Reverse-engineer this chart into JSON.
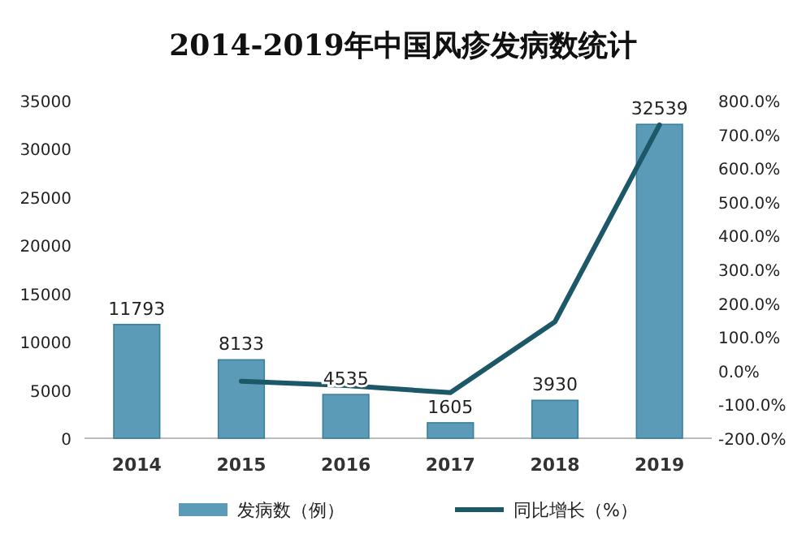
{
  "chart_data": {
    "type": "bar",
    "title": "2014-2019年中国风疹发病数统计",
    "categories": [
      "2014",
      "2015",
      "2016",
      "2017",
      "2018",
      "2019"
    ],
    "series": [
      {
        "name": "发病数（例）",
        "color": "#5b9bb8",
        "values": [
          11793,
          8133,
          4535,
          1605,
          3930,
          32539
        ],
        "value_labels": [
          "11793",
          "8133",
          "4535",
          "1605",
          "3930",
          "32539"
        ]
      },
      {
        "name": "同比增长（%）",
        "type": "line",
        "axis": "y2",
        "color": "#1d5868",
        "values": [
          null,
          -31,
          -44,
          -65,
          145,
          728
        ]
      }
    ],
    "ylim": [
      0,
      35000
    ],
    "yticks": [
      0,
      5000,
      10000,
      15000,
      20000,
      25000,
      30000,
      35000
    ],
    "y2lim": [
      -200,
      800
    ],
    "y2ticks": [
      {
        "value": -200,
        "label": "-200.0%"
      },
      {
        "value": -100,
        "label": "-100.0%"
      },
      {
        "value": 0,
        "label": "0.0%"
      },
      {
        "value": 100,
        "label": "100.0%"
      },
      {
        "value": 200,
        "label": "200.0%"
      },
      {
        "value": 300,
        "label": "300.0%"
      },
      {
        "value": 400,
        "label": "400.0%"
      },
      {
        "value": 500,
        "label": "500.0%"
      },
      {
        "value": 600,
        "label": "600.0%"
      },
      {
        "value": 700,
        "label": "700.0%"
      },
      {
        "value": 800,
        "label": "800.0%"
      }
    ],
    "legend": "bottom",
    "marker": "none",
    "line_style": "solid"
  }
}
